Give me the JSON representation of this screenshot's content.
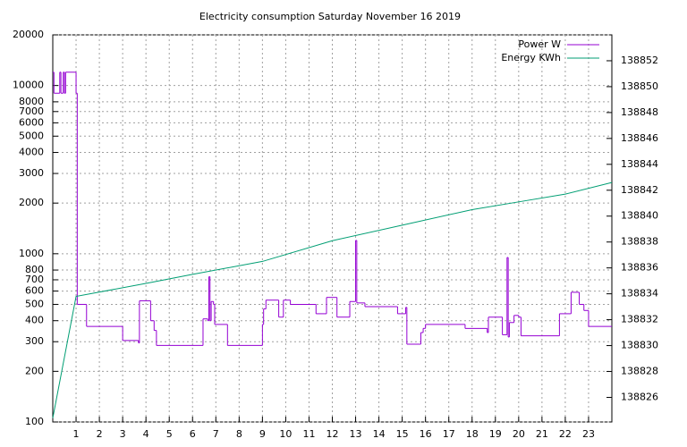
{
  "chart_data": {
    "type": "line",
    "title": "Electricity consumption Saturday November 16 2019",
    "xlim": [
      0,
      24
    ],
    "xticks": [
      1,
      2,
      3,
      4,
      5,
      6,
      7,
      8,
      9,
      10,
      11,
      12,
      13,
      14,
      15,
      16,
      17,
      18,
      19,
      20,
      21,
      22,
      23
    ],
    "ylim": [
      100,
      20000
    ],
    "yscale": "log",
    "yticks": [
      100,
      200,
      300,
      400,
      500,
      600,
      700,
      800,
      1000,
      2000,
      3000,
      4000,
      5000,
      6000,
      7000,
      8000,
      10000,
      20000
    ],
    "y2lim": [
      138824.1,
      138854
    ],
    "y2ticks": [
      138826,
      138828,
      138830,
      138832,
      138834,
      138836,
      138838,
      138840,
      138842,
      138844,
      138846,
      138848,
      138850,
      138852
    ],
    "grid": true,
    "legend": "top-right",
    "series": [
      {
        "name": "Power W",
        "color": "#9400d3",
        "steps": true,
        "x": [
          0,
          0.05,
          0.3,
          0.35,
          0.45,
          0.5,
          0.55,
          1.0,
          1.05,
          1.45,
          3.0,
          3.68,
          3.72,
          4.2,
          4.35,
          4.45,
          6.45,
          6.65,
          6.7,
          6.75,
          6.8,
          6.9,
          6.95,
          7.5,
          9.0,
          9.05,
          9.15,
          9.7,
          9.9,
          10.2,
          11.3,
          11.75,
          12.2,
          12.75,
          13.0,
          13.05,
          13.4,
          14.8,
          15.15,
          15.2,
          15.8,
          15.9,
          16.0,
          17.7,
          18.65,
          18.7,
          19.3,
          19.5,
          19.55,
          19.6,
          19.8,
          20.0,
          20.1,
          21.75,
          22.25,
          22.6,
          22.8,
          23.0
        ],
        "values": [
          12000,
          9000,
          12000,
          9000,
          12000,
          9000,
          12000,
          9000,
          500,
          370,
          305,
          295,
          525,
          400,
          350,
          285,
          410,
          400,
          730,
          400,
          520,
          500,
          380,
          285,
          380,
          470,
          530,
          420,
          530,
          500,
          440,
          550,
          420,
          520,
          1200,
          510,
          485,
          440,
          480,
          290,
          340,
          360,
          380,
          360,
          340,
          420,
          330,
          950,
          320,
          390,
          430,
          420,
          325,
          440,
          590,
          500,
          460,
          370
        ]
      },
      {
        "name": "Energy KWh",
        "color": "#009e73",
        "axis": "y2",
        "x": [
          0,
          1,
          4,
          6,
          9,
          12,
          15,
          18,
          20,
          22,
          24
        ],
        "values": [
          138824.4,
          138833.8,
          138834.8,
          138835.5,
          138836.5,
          138838.1,
          138839.3,
          138840.5,
          138841.1,
          138841.7,
          138842.6
        ]
      }
    ]
  }
}
